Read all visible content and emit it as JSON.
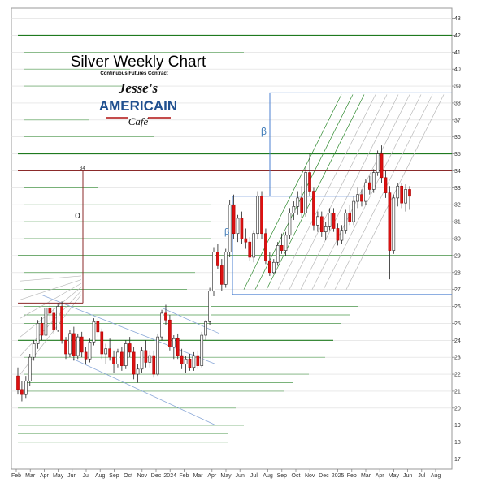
{
  "chart_data": {
    "type": "candlestick",
    "title": "Silver Weekly Chart",
    "subtitle": "Continuous Futures Contract",
    "logo": {
      "line1": "Jesse's",
      "line2": "AMERICAIN",
      "line3": "Café"
    },
    "ylim": [
      16.4,
      43.6
    ],
    "y_ticks": [
      17,
      18,
      19,
      20,
      21,
      22,
      23,
      24,
      25,
      26,
      27,
      28,
      29,
      30,
      31,
      32,
      33,
      34,
      35,
      36,
      37,
      38,
      39,
      40,
      41,
      42,
      43
    ],
    "x_tick_labels": [
      "Feb",
      "Mar",
      "Apr",
      "May",
      "Jun",
      "Jul",
      "Aug",
      "Sep",
      "Oct",
      "Nov",
      "Dec",
      "2024",
      "Feb",
      "Mar",
      "Apr",
      "May",
      "Jun",
      "Jul",
      "Aug",
      "Sep",
      "Oct",
      "Nov",
      "Dec",
      "2025",
      "Feb",
      "Mar",
      "Apr",
      "May",
      "Jun",
      "Jul",
      "Aug"
    ],
    "annotations": {
      "alpha": "α",
      "beta_upper": "β",
      "beta_lower": "β",
      "alpha_level": "34"
    },
    "horizontal_levels": [
      {
        "y": 42,
        "color": "#1f7a1f"
      },
      {
        "y": 35,
        "color": "#1f7a1f"
      },
      {
        "y": 34,
        "color": "#8b2a2a"
      },
      {
        "y": 29,
        "color": "#1f7a1f"
      },
      {
        "y": 24,
        "color": "#1f7a1f"
      },
      {
        "y": 19,
        "color": "#1f7a1f"
      },
      {
        "y": 18,
        "color": "#1f7a1f"
      }
    ],
    "colors": {
      "up": "#ffffff",
      "down": "#dd1111",
      "support": "#1f7a1f",
      "channel": "#8aa8d8",
      "beta_box": "#4a7fd0",
      "alpha_line": "#8b2a2a"
    },
    "ohlc": [
      [
        21.9,
        22.4,
        20.8,
        21.1
      ],
      [
        21.1,
        21.6,
        20.4,
        20.8
      ],
      [
        20.8,
        21.9,
        20.6,
        21.6
      ],
      [
        21.6,
        23.2,
        21.3,
        23.0
      ],
      [
        23.0,
        24.0,
        22.8,
        23.8
      ],
      [
        23.8,
        25.2,
        23.5,
        25.0
      ],
      [
        25.0,
        25.4,
        24.0,
        24.3
      ],
      [
        24.3,
        26.1,
        24.1,
        25.9
      ],
      [
        25.9,
        26.3,
        25.2,
        25.6
      ],
      [
        25.6,
        25.9,
        24.4,
        24.6
      ],
      [
        24.6,
        26.2,
        24.5,
        26.0
      ],
      [
        26.0,
        26.3,
        23.8,
        24.0
      ],
      [
        24.0,
        24.2,
        22.9,
        23.2
      ],
      [
        23.2,
        24.6,
        23.0,
        24.4
      ],
      [
        24.4,
        24.8,
        22.8,
        23.1
      ],
      [
        23.1,
        24.4,
        22.9,
        24.2
      ],
      [
        24.2,
        24.5,
        23.0,
        23.3
      ],
      [
        23.3,
        23.6,
        22.6,
        22.9
      ],
      [
        22.9,
        24.1,
        22.7,
        23.9
      ],
      [
        23.9,
        25.3,
        23.7,
        25.1
      ],
      [
        25.1,
        25.5,
        24.2,
        24.5
      ],
      [
        24.5,
        24.7,
        22.9,
        23.2
      ],
      [
        23.2,
        23.8,
        22.6,
        23.5
      ],
      [
        23.5,
        24.1,
        22.8,
        23.0
      ],
      [
        23.0,
        23.4,
        22.1,
        22.6
      ],
      [
        22.6,
        23.5,
        22.4,
        23.3
      ],
      [
        23.3,
        23.6,
        22.2,
        22.5
      ],
      [
        22.5,
        24.0,
        22.3,
        23.8
      ],
      [
        23.8,
        24.2,
        23.0,
        23.3
      ],
      [
        23.3,
        23.6,
        21.7,
        22.0
      ],
      [
        22.0,
        22.6,
        21.5,
        22.3
      ],
      [
        22.3,
        23.6,
        22.1,
        23.4
      ],
      [
        23.4,
        24.0,
        22.4,
        22.7
      ],
      [
        22.7,
        23.4,
        22.4,
        23.1
      ],
      [
        23.1,
        23.4,
        21.8,
        22.0
      ],
      [
        22.0,
        24.4,
        21.9,
        24.2
      ],
      [
        24.2,
        25.8,
        24.0,
        25.6
      ],
      [
        25.6,
        26.1,
        24.9,
        25.2
      ],
      [
        25.2,
        25.5,
        23.4,
        23.6
      ],
      [
        23.6,
        24.3,
        22.9,
        24.1
      ],
      [
        24.1,
        24.4,
        22.9,
        23.1
      ],
      [
        23.1,
        23.5,
        22.3,
        22.6
      ],
      [
        22.6,
        23.1,
        22.1,
        22.9
      ],
      [
        22.9,
        23.2,
        22.2,
        22.4
      ],
      [
        22.4,
        23.3,
        22.2,
        23.1
      ],
      [
        23.1,
        23.4,
        22.3,
        22.5
      ],
      [
        22.5,
        24.5,
        22.4,
        24.3
      ],
      [
        24.3,
        25.2,
        24.0,
        25.1
      ],
      [
        25.1,
        27.1,
        24.9,
        26.9
      ],
      [
        26.9,
        29.5,
        26.6,
        29.2
      ],
      [
        29.2,
        29.7,
        28.2,
        28.4
      ],
      [
        28.4,
        28.8,
        26.9,
        27.3
      ],
      [
        27.3,
        29.4,
        27.1,
        29.2
      ],
      [
        29.2,
        32.3,
        28.9,
        32.0
      ],
      [
        32.0,
        32.6,
        30.0,
        30.3
      ],
      [
        30.3,
        31.4,
        29.8,
        31.2
      ],
      [
        31.2,
        31.6,
        29.7,
        30.0
      ],
      [
        30.0,
        30.6,
        29.4,
        29.8
      ],
      [
        29.8,
        30.1,
        28.7,
        28.9
      ],
      [
        28.9,
        30.5,
        28.6,
        30.3
      ],
      [
        30.3,
        32.8,
        30.0,
        32.5
      ],
      [
        32.5,
        32.8,
        30.0,
        30.3
      ],
      [
        30.3,
        30.6,
        28.5,
        28.7
      ],
      [
        28.7,
        29.2,
        27.8,
        28.0
      ],
      [
        28.0,
        28.8,
        27.9,
        28.6
      ],
      [
        28.6,
        29.8,
        28.4,
        29.6
      ],
      [
        29.6,
        30.3,
        29.1,
        29.3
      ],
      [
        29.3,
        30.4,
        29.0,
        30.2
      ],
      [
        30.2,
        31.8,
        30.0,
        31.5
      ],
      [
        31.5,
        32.2,
        31.1,
        31.9
      ],
      [
        31.9,
        32.8,
        31.4,
        32.4
      ],
      [
        32.4,
        33.1,
        31.2,
        31.5
      ],
      [
        31.5,
        34.2,
        31.3,
        33.9
      ],
      [
        33.9,
        35.0,
        32.5,
        32.8
      ],
      [
        32.8,
        33.0,
        30.5,
        30.8
      ],
      [
        30.8,
        31.6,
        30.4,
        31.3
      ],
      [
        31.3,
        31.6,
        30.1,
        30.4
      ],
      [
        30.4,
        31.0,
        29.9,
        30.7
      ],
      [
        30.7,
        31.8,
        30.5,
        31.5
      ],
      [
        31.5,
        31.8,
        30.4,
        30.6
      ],
      [
        30.6,
        30.9,
        29.6,
        29.9
      ],
      [
        29.9,
        30.8,
        29.7,
        30.5
      ],
      [
        30.5,
        31.7,
        30.3,
        31.5
      ],
      [
        31.5,
        32.0,
        30.8,
        31.0
      ],
      [
        31.0,
        32.5,
        30.8,
        32.2
      ],
      [
        32.2,
        33.0,
        31.8,
        32.6
      ],
      [
        32.6,
        32.9,
        31.9,
        32.2
      ],
      [
        32.2,
        33.5,
        32.0,
        33.3
      ],
      [
        33.3,
        33.7,
        32.6,
        32.9
      ],
      [
        32.9,
        34.1,
        32.7,
        33.9
      ],
      [
        33.9,
        35.2,
        33.7,
        35.0
      ],
      [
        35.0,
        35.5,
        33.3,
        33.6
      ],
      [
        33.6,
        34.0,
        32.4,
        32.7
      ],
      [
        32.7,
        33.1,
        27.6,
        29.3
      ],
      [
        29.3,
        32.6,
        29.1,
        32.4
      ],
      [
        32.4,
        33.3,
        31.9,
        33.1
      ],
      [
        33.1,
        33.3,
        31.8,
        32.1
      ],
      [
        32.1,
        33.2,
        31.6,
        32.9
      ],
      [
        32.9,
        33.1,
        31.7,
        32.5
      ]
    ]
  }
}
